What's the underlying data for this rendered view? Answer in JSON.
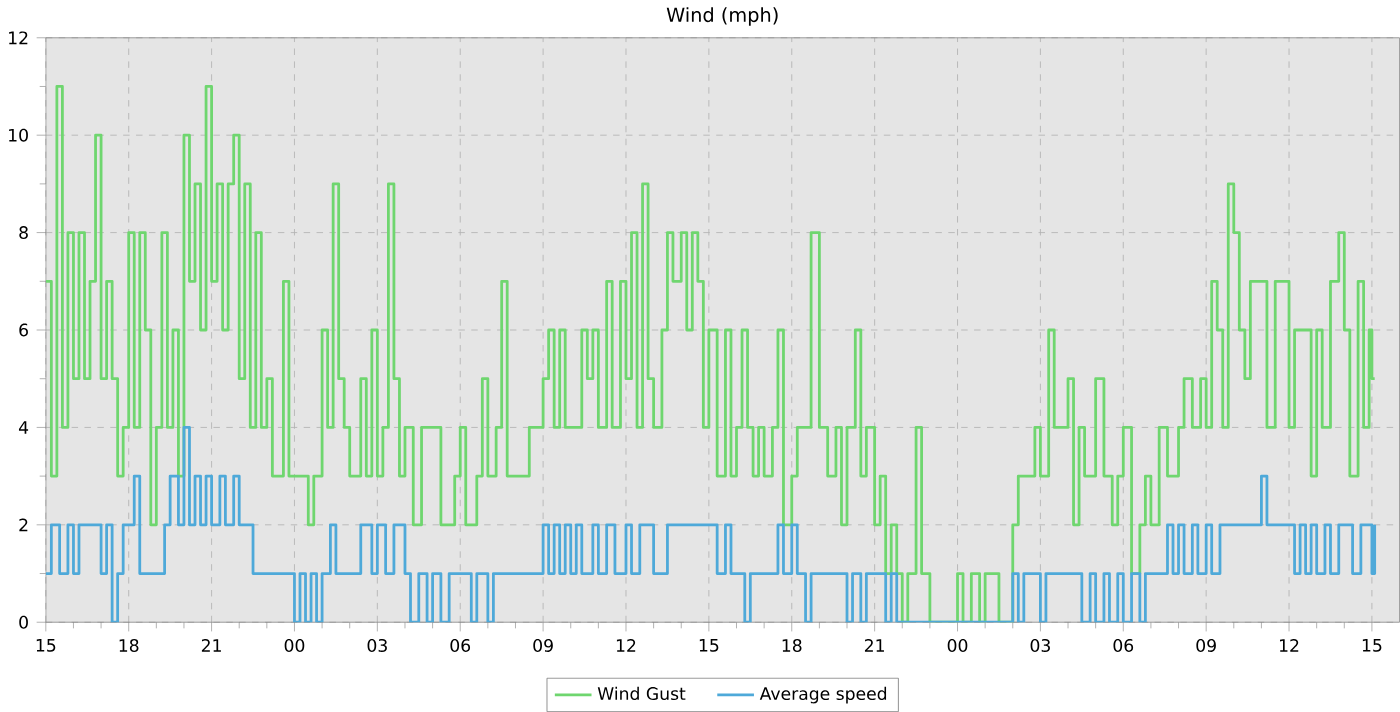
{
  "chart_data": {
    "type": "step",
    "title": "Wind (mph)",
    "xlim": [
      15,
      64
    ],
    "ylim": [
      0,
      12
    ],
    "xticks": [
      15,
      18,
      21,
      {
        "value": 24,
        "label": "00"
      },
      {
        "value": 27,
        "label": "03"
      },
      {
        "value": 30,
        "label": "06"
      },
      {
        "value": 33,
        "label": "09"
      },
      {
        "value": 36,
        "label": "12"
      },
      {
        "value": 39,
        "label": "15"
      },
      {
        "value": 42,
        "label": "18"
      },
      {
        "value": 45,
        "label": "21"
      },
      {
        "value": 48,
        "label": "00"
      },
      {
        "value": 51,
        "label": "03"
      },
      {
        "value": 54,
        "label": "06"
      },
      {
        "value": 57,
        "label": "09"
      },
      {
        "value": 60,
        "label": "12"
      },
      {
        "value": 63,
        "label": "15"
      }
    ],
    "yticks": [
      0,
      2,
      4,
      6,
      8,
      10,
      12
    ],
    "grid": true,
    "legend": "bottom",
    "marker": "none",
    "line_style": "solid",
    "series": [
      {
        "name": "Wind Gust",
        "color": "#6fd66f",
        "x": [
          15.0,
          15.2,
          15.4,
          15.6,
          15.8,
          16.0,
          16.2,
          16.4,
          16.6,
          16.8,
          17.0,
          17.2,
          17.4,
          17.6,
          17.8,
          18.0,
          18.2,
          18.4,
          18.6,
          18.8,
          19.0,
          19.2,
          19.4,
          19.6,
          19.8,
          20.0,
          20.2,
          20.4,
          20.6,
          20.8,
          21.0,
          21.2,
          21.4,
          21.6,
          21.8,
          22.0,
          22.2,
          22.4,
          22.6,
          22.8,
          23.0,
          23.2,
          23.6,
          23.8,
          24.2,
          24.5,
          24.7,
          25.0,
          25.2,
          25.4,
          25.6,
          25.8,
          26.0,
          26.4,
          26.6,
          26.8,
          27.0,
          27.2,
          27.4,
          27.6,
          27.8,
          28.0,
          28.3,
          28.6,
          29.0,
          29.3,
          29.8,
          30.0,
          30.2,
          30.6,
          30.8,
          31.0,
          31.3,
          31.5,
          31.7,
          32.0,
          32.5,
          33.0,
          33.2,
          33.4,
          33.6,
          33.8,
          34.2,
          34.4,
          34.6,
          34.8,
          35.0,
          35.3,
          35.5,
          35.8,
          36.0,
          36.2,
          36.4,
          36.6,
          36.8,
          37.0,
          37.3,
          37.5,
          37.7,
          38.0,
          38.2,
          38.4,
          38.6,
          38.8,
          39.0,
          39.3,
          39.6,
          39.8,
          40.0,
          40.2,
          40.4,
          40.6,
          40.8,
          41.0,
          41.3,
          41.5,
          41.7,
          42.0,
          42.2,
          42.6,
          42.7,
          43.0,
          43.3,
          43.6,
          43.8,
          44.0,
          44.3,
          44.5,
          44.7,
          45.0,
          45.2,
          45.4,
          45.6,
          45.8,
          46.0,
          46.2,
          46.5,
          46.7,
          47.0,
          47.5,
          48.0,
          48.2,
          48.5,
          48.8,
          49.0,
          49.5,
          50.0,
          50.2,
          50.8,
          51.0,
          51.3,
          51.5,
          51.8,
          52.0,
          52.2,
          52.4,
          52.6,
          53.0,
          53.3,
          53.6,
          53.8,
          54.0,
          54.3,
          54.6,
          54.8,
          55.0,
          55.3,
          55.6,
          56.0,
          56.2,
          56.5,
          56.8,
          57.0,
          57.2,
          57.4,
          57.6,
          57.8,
          58.0,
          58.2,
          58.4,
          58.6,
          59.0,
          59.2,
          59.5,
          59.8,
          60.0,
          60.2,
          60.5,
          60.8,
          61.0,
          61.2,
          61.5,
          61.8,
          62.0,
          62.2,
          62.5,
          62.7,
          62.9,
          63.0,
          63.1
        ],
        "values": [
          7,
          3,
          11,
          4,
          8,
          5,
          8,
          5,
          7,
          10,
          5,
          7,
          5,
          3,
          4,
          8,
          4,
          8,
          6,
          2,
          4,
          8,
          4,
          6,
          3,
          10,
          7,
          9,
          6,
          11,
          7,
          9,
          6,
          9,
          10,
          5,
          9,
          4,
          8,
          4,
          5,
          3,
          7,
          3,
          3,
          2,
          3,
          6,
          4,
          9,
          5,
          4,
          3,
          5,
          3,
          6,
          3,
          4,
          9,
          5,
          3,
          4,
          2,
          4,
          4,
          2,
          3,
          4,
          2,
          3,
          5,
          3,
          4,
          7,
          3,
          3,
          4,
          5,
          6,
          4,
          6,
          4,
          4,
          6,
          5,
          6,
          4,
          7,
          4,
          7,
          5,
          8,
          4,
          9,
          5,
          4,
          6,
          8,
          7,
          8,
          6,
          8,
          7,
          4,
          6,
          3,
          6,
          3,
          4,
          6,
          4,
          3,
          4,
          3,
          4,
          6,
          2,
          3,
          4,
          4,
          8,
          4,
          3,
          4,
          2,
          4,
          6,
          3,
          4,
          2,
          3,
          1,
          2,
          1,
          0,
          1,
          4,
          1,
          0,
          0,
          1,
          0,
          1,
          0,
          1,
          0,
          2,
          3,
          4,
          3,
          6,
          4,
          4,
          5,
          2,
          4,
          3,
          5,
          3,
          2,
          3,
          4,
          1,
          2,
          3,
          2,
          4,
          3,
          4,
          5,
          4,
          5,
          4,
          7,
          6,
          4,
          9,
          8,
          6,
          5,
          7,
          7,
          4,
          7,
          7,
          4,
          6,
          6,
          3,
          6,
          4,
          7,
          8,
          6,
          3,
          7,
          4,
          6,
          5,
          5
        ]
      },
      {
        "name": "Average speed",
        "color": "#4ea9d9",
        "x": [
          15.0,
          15.2,
          15.5,
          15.8,
          16.0,
          16.2,
          17.0,
          17.2,
          17.4,
          17.6,
          17.8,
          18.2,
          18.4,
          19.0,
          19.3,
          19.5,
          19.8,
          20.0,
          20.2,
          20.4,
          20.6,
          20.8,
          21.0,
          21.3,
          21.5,
          21.8,
          22.0,
          22.2,
          22.5,
          23.0,
          23.5,
          24.0,
          24.2,
          24.4,
          24.6,
          24.8,
          25.0,
          25.3,
          25.5,
          26.0,
          26.4,
          26.8,
          27.0,
          27.3,
          27.6,
          28.0,
          28.2,
          28.5,
          28.8,
          29.0,
          29.3,
          29.6,
          30.0,
          30.4,
          30.6,
          31.0,
          31.2,
          31.5,
          32.0,
          32.5,
          33.0,
          33.2,
          33.4,
          33.6,
          33.8,
          34.0,
          34.2,
          34.4,
          34.8,
          35.0,
          35.3,
          35.6,
          36.0,
          36.2,
          36.5,
          36.8,
          37.0,
          37.5,
          38.0,
          38.5,
          39.0,
          39.3,
          39.6,
          39.8,
          40.0,
          40.3,
          40.5,
          41.0,
          41.5,
          41.7,
          42.0,
          42.2,
          42.5,
          42.7,
          43.0,
          43.5,
          44.0,
          44.2,
          44.5,
          44.7,
          45.0,
          45.4,
          45.6,
          45.8,
          46.0,
          47.0,
          48.0,
          49.0,
          50.0,
          50.2,
          50.4,
          50.8,
          51.0,
          51.2,
          52.0,
          52.5,
          52.8,
          53.0,
          53.3,
          53.5,
          53.8,
          54.0,
          54.3,
          54.6,
          54.8,
          55.2,
          55.6,
          55.8,
          56.0,
          56.2,
          56.5,
          56.7,
          57.0,
          57.2,
          57.5,
          58.0,
          58.5,
          59.0,
          59.2,
          59.5,
          60.0,
          60.2,
          60.4,
          60.6,
          60.8,
          61.0,
          61.3,
          61.5,
          61.8,
          62.0,
          62.3,
          62.6,
          62.8,
          63.0,
          63.1
        ],
        "values": [
          1,
          2,
          1,
          2,
          1,
          2,
          1,
          2,
          0,
          1,
          2,
          3,
          1,
          1,
          2,
          3,
          2,
          4,
          2,
          3,
          2,
          3,
          2,
          3,
          2,
          3,
          2,
          2,
          1,
          1,
          1,
          0,
          1,
          0,
          1,
          0,
          1,
          2,
          1,
          1,
          2,
          1,
          2,
          1,
          2,
          1,
          0,
          1,
          0,
          1,
          0,
          1,
          1,
          0,
          1,
          0,
          1,
          1,
          1,
          1,
          2,
          1,
          2,
          1,
          2,
          1,
          2,
          1,
          2,
          1,
          2,
          1,
          2,
          1,
          2,
          2,
          1,
          2,
          2,
          2,
          2,
          1,
          2,
          1,
          1,
          0,
          1,
          1,
          2,
          1,
          2,
          1,
          0,
          1,
          1,
          1,
          0,
          1,
          0,
          1,
          1,
          0,
          1,
          0,
          0,
          0,
          0,
          0,
          1,
          0,
          1,
          1,
          0,
          1,
          1,
          0,
          1,
          0,
          1,
          0,
          1,
          0,
          1,
          0,
          1,
          1,
          2,
          1,
          2,
          1,
          2,
          1,
          2,
          1,
          2,
          2,
          2,
          3,
          2,
          2,
          2,
          1,
          2,
          1,
          2,
          1,
          2,
          1,
          2,
          2,
          1,
          2,
          2,
          1,
          2
        ]
      }
    ]
  }
}
